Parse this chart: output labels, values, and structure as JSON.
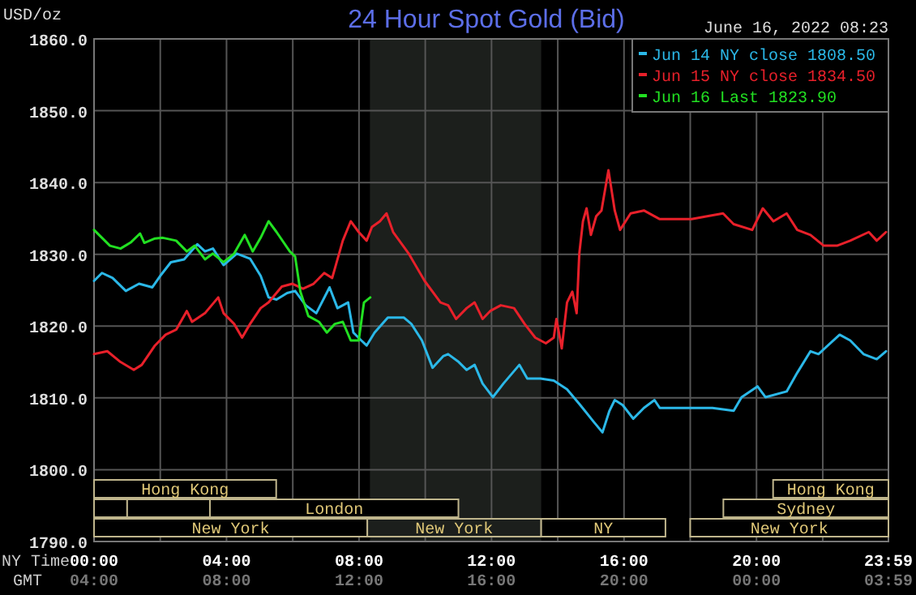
{
  "chart_data": {
    "type": "line",
    "title": "24 Hour Spot Gold (Bid)",
    "subtitle": "June 16, 2022 08:23",
    "ylabel": "USD/oz",
    "xlabel": "NY Time",
    "x2label": "GMT",
    "xlim": [
      0,
      23.983
    ],
    "ylim": [
      1790,
      1860
    ],
    "xticks": [
      {
        "value": 0,
        "label": "00:00"
      },
      {
        "value": 2,
        "label": null
      },
      {
        "value": 4,
        "label": "04:00"
      },
      {
        "value": 6,
        "label": null
      },
      {
        "value": 8,
        "label": "08:00"
      },
      {
        "value": 10,
        "label": null
      },
      {
        "value": 12,
        "label": "12:00"
      },
      {
        "value": 14,
        "label": null
      },
      {
        "value": 16,
        "label": "16:00"
      },
      {
        "value": 18,
        "label": null
      },
      {
        "value": 20,
        "label": "20:00"
      },
      {
        "value": 22,
        "label": null
      },
      {
        "value": 23.983,
        "label": "23:59"
      }
    ],
    "x2lim": [
      "2022-06-16T04:00",
      "2022-06-17T03:59"
    ],
    "x2ticks": [
      {
        "value": "2022-06-16T04:00",
        "label": "04:00"
      },
      {
        "value": "2022-06-16T08:00",
        "label": "08:00"
      },
      {
        "value": "2022-06-16T12:00",
        "label": "12:00"
      },
      {
        "value": "2022-06-16T16:00",
        "label": "16:00"
      },
      {
        "value": "2022-06-16T20:00",
        "label": "20:00"
      },
      {
        "value": "2022-06-17T00:00",
        "label": "00:00"
      },
      {
        "value": "2022-06-17T03:59",
        "label": "03:59"
      }
    ],
    "yticks": [
      {
        "value": 1790,
        "label": "1790.0"
      },
      {
        "value": 1800,
        "label": "1800.0"
      },
      {
        "value": 1810,
        "label": "1810.0"
      },
      {
        "value": 1820,
        "label": "1820.0"
      },
      {
        "value": 1830,
        "label": "1830.0"
      },
      {
        "value": 1840,
        "label": "1840.0"
      },
      {
        "value": 1850,
        "label": "1850.0"
      },
      {
        "value": 1860,
        "label": "1860.0"
      }
    ],
    "grid": true,
    "legend": "top right",
    "series": [
      {
        "name": "Jun 14 NY close 1808.50",
        "color": "#2bb8e8",
        "x": [
          0,
          0.24,
          0.56,
          0.96,
          1.36,
          1.76,
          2.0,
          2.32,
          2.72,
          3.12,
          3.35,
          3.59,
          3.91,
          4.31,
          4.71,
          5.03,
          5.27,
          5.51,
          5.83,
          6.07,
          6.39,
          6.71,
          7.11,
          7.35,
          7.67,
          7.83,
          8.07,
          8.23,
          8.47,
          8.87,
          9.35,
          9.58,
          9.9,
          10.22,
          10.54,
          10.69,
          11.01,
          11.25,
          11.49,
          11.73,
          12.04,
          12.36,
          12.84,
          13.08,
          13.48,
          13.88,
          14.28,
          14.68,
          15.08,
          15.35,
          15.56,
          15.72,
          15.96,
          16.28,
          16.6,
          16.92,
          17.08,
          18.04,
          18.67,
          19.31,
          19.55,
          20.03,
          20.27,
          20.91,
          21.23,
          21.63,
          21.87,
          22.51,
          22.83,
          23.23,
          23.63,
          23.91
        ],
        "values": [
          1826.3,
          1827.4,
          1826.7,
          1824.9,
          1825.9,
          1825.4,
          1827.0,
          1828.9,
          1829.3,
          1831.4,
          1830.4,
          1830.8,
          1828.5,
          1830.1,
          1829.4,
          1827.0,
          1824.0,
          1823.7,
          1824.6,
          1824.9,
          1822.9,
          1821.8,
          1825.4,
          1822.5,
          1823.3,
          1819.1,
          1818.0,
          1817.3,
          1819.1,
          1821.2,
          1821.2,
          1820.3,
          1818.0,
          1814.2,
          1815.8,
          1816.1,
          1815.0,
          1813.9,
          1814.6,
          1812.0,
          1810.1,
          1812.0,
          1814.6,
          1812.7,
          1812.7,
          1812.4,
          1811.2,
          1809.0,
          1806.7,
          1805.2,
          1808.2,
          1809.7,
          1809.0,
          1807.1,
          1808.6,
          1809.7,
          1808.6,
          1808.6,
          1808.6,
          1808.2,
          1810.1,
          1811.6,
          1810.1,
          1810.9,
          1813.5,
          1816.5,
          1816.1,
          1818.8,
          1818.0,
          1816.1,
          1815.4,
          1816.5
        ]
      },
      {
        "name": "Jun 15 NY close 1834.50",
        "color": "#e8202a",
        "x": [
          0,
          0.4,
          0.8,
          1.2,
          1.44,
          1.84,
          2.16,
          2.48,
          2.8,
          2.96,
          3.35,
          3.75,
          3.91,
          4.23,
          4.47,
          4.71,
          5.03,
          5.27,
          5.67,
          5.99,
          6.31,
          6.63,
          6.95,
          7.19,
          7.51,
          7.75,
          7.99,
          8.23,
          8.39,
          8.63,
          8.83,
          9.03,
          9.5,
          9.98,
          10.46,
          10.69,
          10.93,
          11.25,
          11.49,
          11.73,
          11.96,
          12.28,
          12.68,
          13.0,
          13.32,
          13.64,
          13.88,
          13.96,
          14.12,
          14.28,
          14.44,
          14.57,
          14.65,
          14.76,
          14.87,
          15.0,
          15.16,
          15.32,
          15.53,
          15.72,
          15.88,
          16.2,
          16.6,
          17.08,
          18.04,
          18.51,
          18.99,
          19.31,
          19.87,
          20.19,
          20.51,
          20.91,
          21.23,
          21.63,
          22.03,
          22.43,
          22.83,
          23.39,
          23.63,
          23.91
        ],
        "values": [
          1816.1,
          1816.5,
          1815.0,
          1813.9,
          1814.6,
          1817.3,
          1818.8,
          1819.5,
          1822.1,
          1820.6,
          1821.8,
          1824.0,
          1821.8,
          1820.3,
          1818.4,
          1820.3,
          1822.5,
          1823.3,
          1825.5,
          1825.9,
          1825.2,
          1825.9,
          1827.4,
          1826.7,
          1831.9,
          1834.6,
          1833.1,
          1831.9,
          1833.8,
          1834.6,
          1835.7,
          1833.1,
          1830.1,
          1826.3,
          1823.3,
          1822.9,
          1821.0,
          1822.5,
          1823.3,
          1821.0,
          1822.1,
          1822.9,
          1822.5,
          1820.3,
          1818.4,
          1817.6,
          1818.4,
          1821.0,
          1816.9,
          1823.3,
          1824.8,
          1821.8,
          1830.1,
          1834.6,
          1836.4,
          1832.7,
          1835.3,
          1836.1,
          1841.7,
          1836.1,
          1833.4,
          1835.7,
          1836.1,
          1834.9,
          1834.9,
          1835.3,
          1835.7,
          1834.2,
          1833.4,
          1836.4,
          1834.6,
          1835.7,
          1833.4,
          1832.7,
          1831.2,
          1831.2,
          1831.9,
          1833.1,
          1831.9,
          1833.1
        ]
      },
      {
        "name": "Jun 16 Last 1823.90",
        "color": "#22e022",
        "x": [
          0,
          0.24,
          0.48,
          0.8,
          1.12,
          1.39,
          1.52,
          1.84,
          2.08,
          2.48,
          2.8,
          3.04,
          3.35,
          3.59,
          3.91,
          4.23,
          4.55,
          4.79,
          5.03,
          5.27,
          5.51,
          5.91,
          6.07,
          6.23,
          6.47,
          6.79,
          7.03,
          7.27,
          7.51,
          7.75,
          7.99,
          8.15,
          8.34
        ],
        "values": [
          1833.4,
          1832.3,
          1831.2,
          1830.8,
          1831.7,
          1832.9,
          1831.6,
          1832.2,
          1832.3,
          1831.9,
          1830.4,
          1831.2,
          1829.3,
          1830.1,
          1828.9,
          1830.1,
          1832.7,
          1830.4,
          1832.3,
          1834.6,
          1833.1,
          1830.4,
          1829.7,
          1824.8,
          1821.4,
          1820.6,
          1819.1,
          1820.3,
          1820.6,
          1818.0,
          1818.0,
          1823.3,
          1824.0
        ]
      }
    ],
    "bands": [
      {
        "axis": "x",
        "from": 8.33,
        "to": 13.5,
        "color": "#1c1f1c"
      }
    ],
    "annotations": [
      "Hong Kong",
      "Hong Kong",
      "London",
      "Sydney",
      "New York",
      "New York",
      "NY",
      "New York"
    ]
  }
}
